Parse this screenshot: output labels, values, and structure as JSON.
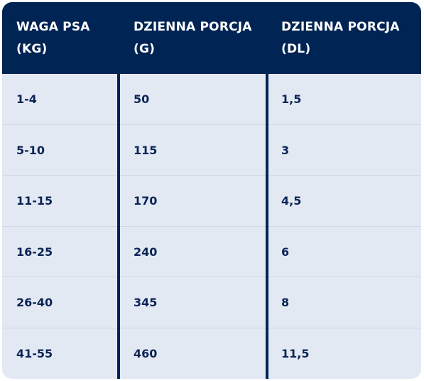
{
  "table": {
    "headers": [
      {
        "line1": "WAGA PSA",
        "line2": "(KG)"
      },
      {
        "line1": "DZIENNA PORCJA",
        "line2": "(G)"
      },
      {
        "line1": "DZIENNA PORCJA",
        "line2": "(DL)"
      }
    ],
    "rows": [
      [
        "1-4",
        "50",
        "1,5"
      ],
      [
        "5-10",
        "115",
        "3"
      ],
      [
        "11-15",
        "170",
        "4,5"
      ],
      [
        "16-25",
        "240",
        "6"
      ],
      [
        "26-40",
        "345",
        "8"
      ],
      [
        "41-55",
        "460",
        "11,5"
      ]
    ]
  },
  "colors": {
    "header_background": "#002454",
    "body_background": "#e3e9f2",
    "text_primary": "#0b2457",
    "header_text": "#ffffff",
    "row_divider": "#cdd6e4"
  }
}
